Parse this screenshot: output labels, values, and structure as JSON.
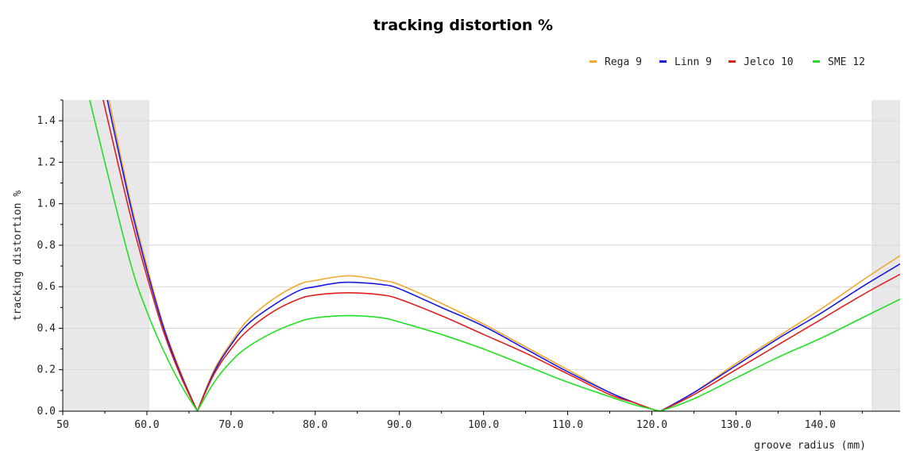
{
  "chart_data": {
    "type": "line",
    "title": "tracking distortion %",
    "xlabel": "groove radius (mm)",
    "ylabel": "tracking distortion %",
    "xlim": [
      50,
      149.5
    ],
    "ylim": [
      0,
      1.5
    ],
    "x_ticks": [
      50,
      60,
      70,
      80,
      90,
      100,
      110,
      120,
      130,
      140
    ],
    "x_tick_labels": [
      "50",
      "60.0",
      "70.0",
      "80.0",
      "90.0",
      "100.0",
      "110.0",
      "120.0",
      "130.0",
      "140.0"
    ],
    "y_ticks": [
      0,
      0.2,
      0.4,
      0.6,
      0.8,
      1.0,
      1.2,
      1.4
    ],
    "y_tick_labels": [
      "0.0",
      "0.2",
      "0.4",
      "0.6",
      "0.8",
      "1.0",
      "1.2",
      "1.4"
    ],
    "grid": true,
    "legend": "top-right",
    "shaded_regions": [
      [
        50,
        60.3
      ],
      [
        146.1,
        149.5
      ]
    ],
    "shade_color": "#e8e8e8",
    "series": [
      {
        "name": "Rega 9",
        "color": "#f0a830",
        "x": [
          55.5,
          58,
          60,
          62,
          64,
          66,
          68,
          70,
          72,
          75,
          78,
          80,
          83,
          85,
          88,
          90,
          95,
          100,
          105,
          110,
          115,
          118,
          120,
          121,
          125,
          130,
          135,
          140,
          145,
          149.5
        ],
        "y": [
          1.5,
          1.02,
          0.7,
          0.41,
          0.19,
          0.0,
          0.2,
          0.33,
          0.44,
          0.54,
          0.61,
          0.63,
          0.65,
          0.65,
          0.63,
          0.61,
          0.52,
          0.42,
          0.31,
          0.2,
          0.09,
          0.04,
          0.01,
          0.0,
          0.09,
          0.23,
          0.36,
          0.49,
          0.63,
          0.75
        ]
      },
      {
        "name": "Linn 9",
        "color": "#1a1ae0",
        "x": [
          55.3,
          58,
          60,
          62,
          64,
          66,
          68,
          70,
          72,
          75,
          78,
          80,
          83,
          85,
          88,
          90,
          95,
          100,
          105,
          110,
          115,
          118,
          120,
          121,
          125,
          130,
          135,
          140,
          145,
          149.5
        ],
        "y": [
          1.5,
          1.0,
          0.68,
          0.4,
          0.18,
          0.0,
          0.19,
          0.32,
          0.42,
          0.51,
          0.58,
          0.6,
          0.62,
          0.62,
          0.61,
          0.59,
          0.5,
          0.41,
          0.3,
          0.19,
          0.09,
          0.04,
          0.01,
          0.0,
          0.09,
          0.22,
          0.35,
          0.47,
          0.6,
          0.71
        ]
      },
      {
        "name": "Jelco 10",
        "color": "#e02020",
        "x": [
          54.8,
          58,
          60,
          62,
          64,
          66,
          68,
          70,
          72,
          75,
          78,
          80,
          83,
          85,
          88,
          90,
          95,
          100,
          105,
          110,
          115,
          118,
          120,
          121,
          125,
          130,
          135,
          140,
          145,
          149.5
        ],
        "y": [
          1.5,
          0.95,
          0.65,
          0.38,
          0.17,
          0.0,
          0.18,
          0.3,
          0.39,
          0.48,
          0.54,
          0.56,
          0.57,
          0.57,
          0.56,
          0.54,
          0.46,
          0.37,
          0.28,
          0.18,
          0.08,
          0.04,
          0.01,
          0.0,
          0.08,
          0.2,
          0.32,
          0.44,
          0.56,
          0.66
        ]
      },
      {
        "name": "SME 12",
        "color": "#22e022",
        "x": [
          53.2,
          55,
          58,
          60,
          62,
          64,
          66,
          68,
          70,
          72,
          75,
          78,
          80,
          83,
          85,
          88,
          90,
          95,
          100,
          105,
          110,
          115,
          118,
          120,
          121,
          125,
          130,
          135,
          140,
          145,
          149.5
        ],
        "y": [
          1.5,
          1.2,
          0.72,
          0.48,
          0.29,
          0.13,
          0.0,
          0.14,
          0.24,
          0.31,
          0.38,
          0.43,
          0.45,
          0.46,
          0.46,
          0.45,
          0.43,
          0.37,
          0.3,
          0.22,
          0.14,
          0.07,
          0.03,
          0.01,
          0.0,
          0.06,
          0.16,
          0.26,
          0.35,
          0.45,
          0.54
        ]
      }
    ]
  }
}
